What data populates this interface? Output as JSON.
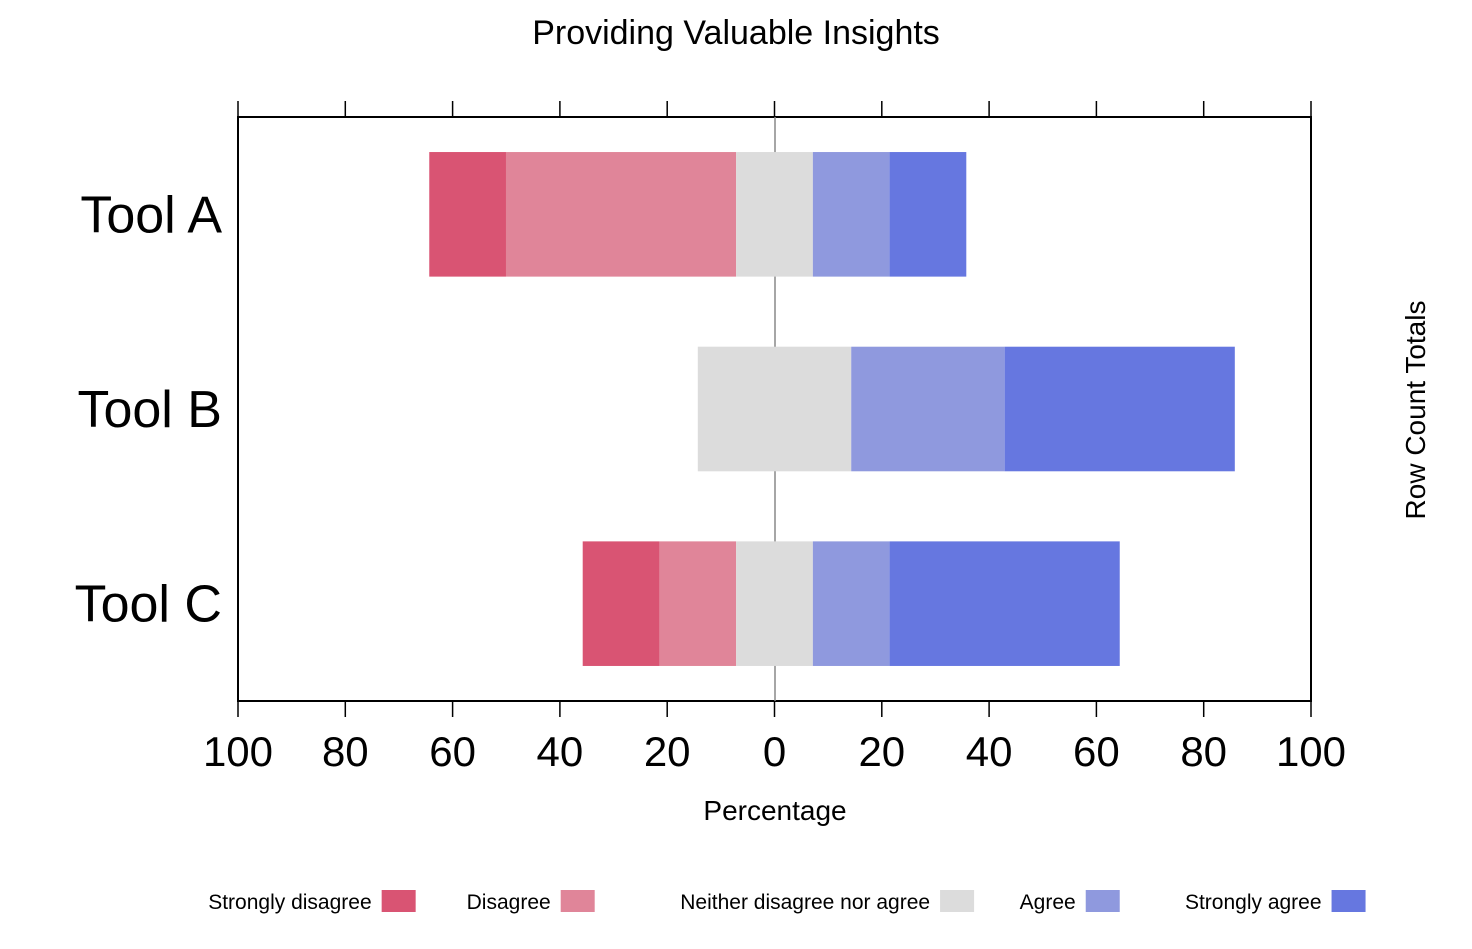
{
  "chart_data": {
    "type": "bar",
    "subtype": "diverging-stacked-horizontal",
    "title": "Providing Valuable Insights",
    "xlabel": "Percentage",
    "ylabel_right": "Row Count Totals",
    "xlim": [
      -100,
      100
    ],
    "x_ticks": [
      -100,
      -80,
      -60,
      -40,
      -20,
      0,
      20,
      40,
      60,
      80,
      100
    ],
    "x_tick_labels": [
      "100",
      "80",
      "60",
      "40",
      "20",
      "0",
      "20",
      "40",
      "60",
      "80",
      "100"
    ],
    "grid": false,
    "legend_position": "bottom",
    "categories": [
      "Tool A",
      "Tool B",
      "Tool C"
    ],
    "series": [
      {
        "name": "Strongly disagree",
        "color": "#d95473",
        "values": [
          14.3,
          0,
          14.3
        ]
      },
      {
        "name": "Disagree",
        "color": "#e08599",
        "values": [
          42.9,
          0,
          14.3
        ]
      },
      {
        "name": "Neither disagree nor agree",
        "color": "#dcdcdc",
        "values": [
          14.3,
          28.6,
          14.3
        ]
      },
      {
        "name": "Agree",
        "color": "#8f99de",
        "values": [
          14.3,
          28.6,
          14.3
        ]
      },
      {
        "name": "Strongly agree",
        "color": "#6677e0",
        "values": [
          14.3,
          42.9,
          42.9
        ]
      }
    ]
  }
}
